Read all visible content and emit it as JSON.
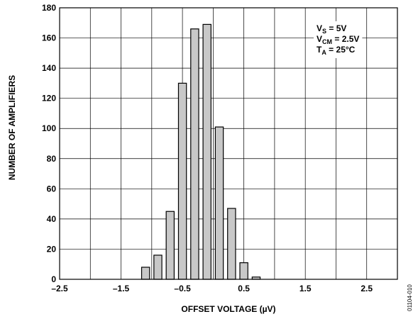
{
  "chart_data": {
    "type": "bar",
    "title": "",
    "xlabel": "OFFSET VOLTAGE (µV)",
    "ylabel": "NUMBER OF AMPLIFIERS",
    "xlim": [
      -2.5,
      3.0
    ],
    "ylim": [
      0,
      180
    ],
    "x_ticks": [
      -2.5,
      -1.5,
      -0.5,
      0.5,
      1.5,
      2.5
    ],
    "x_tick_labels": [
      "–2.5",
      "–1.5",
      "–0.5",
      "0.5",
      "1.5",
      "2.5"
    ],
    "x_grid_lines": [
      -2.5,
      -2.0,
      -1.5,
      -1.0,
      -0.5,
      0,
      0.5,
      1.0,
      1.5,
      2.0,
      2.5,
      3.0
    ],
    "y_ticks": [
      0,
      20,
      40,
      60,
      80,
      100,
      120,
      140,
      160,
      180
    ],
    "y_tick_labels": [
      "0",
      "20",
      "40",
      "60",
      "80",
      "100",
      "120",
      "140",
      "160",
      "180"
    ],
    "grid": true,
    "bar_width": 0.13,
    "x": [
      -1.1,
      -0.9,
      -0.7,
      -0.5,
      -0.3,
      -0.1,
      0.1,
      0.3,
      0.5,
      0.7,
      0.9,
      1.1
    ],
    "values": [
      8,
      16,
      45,
      130,
      166,
      169,
      101,
      47,
      11,
      1.5,
      0,
      0
    ],
    "bar_color": "#c8c8c8",
    "bar_edge_color": "#000000",
    "legend_placement": "top-right",
    "conditions": [
      {
        "main": "V",
        "sub": "S",
        "rest": " = 5V"
      },
      {
        "main": "V",
        "sub": "CM",
        "rest": " = 2.5V"
      },
      {
        "main": "T",
        "sub": "A",
        "rest": " = 25°C"
      }
    ],
    "figure_id": "01104-010"
  }
}
